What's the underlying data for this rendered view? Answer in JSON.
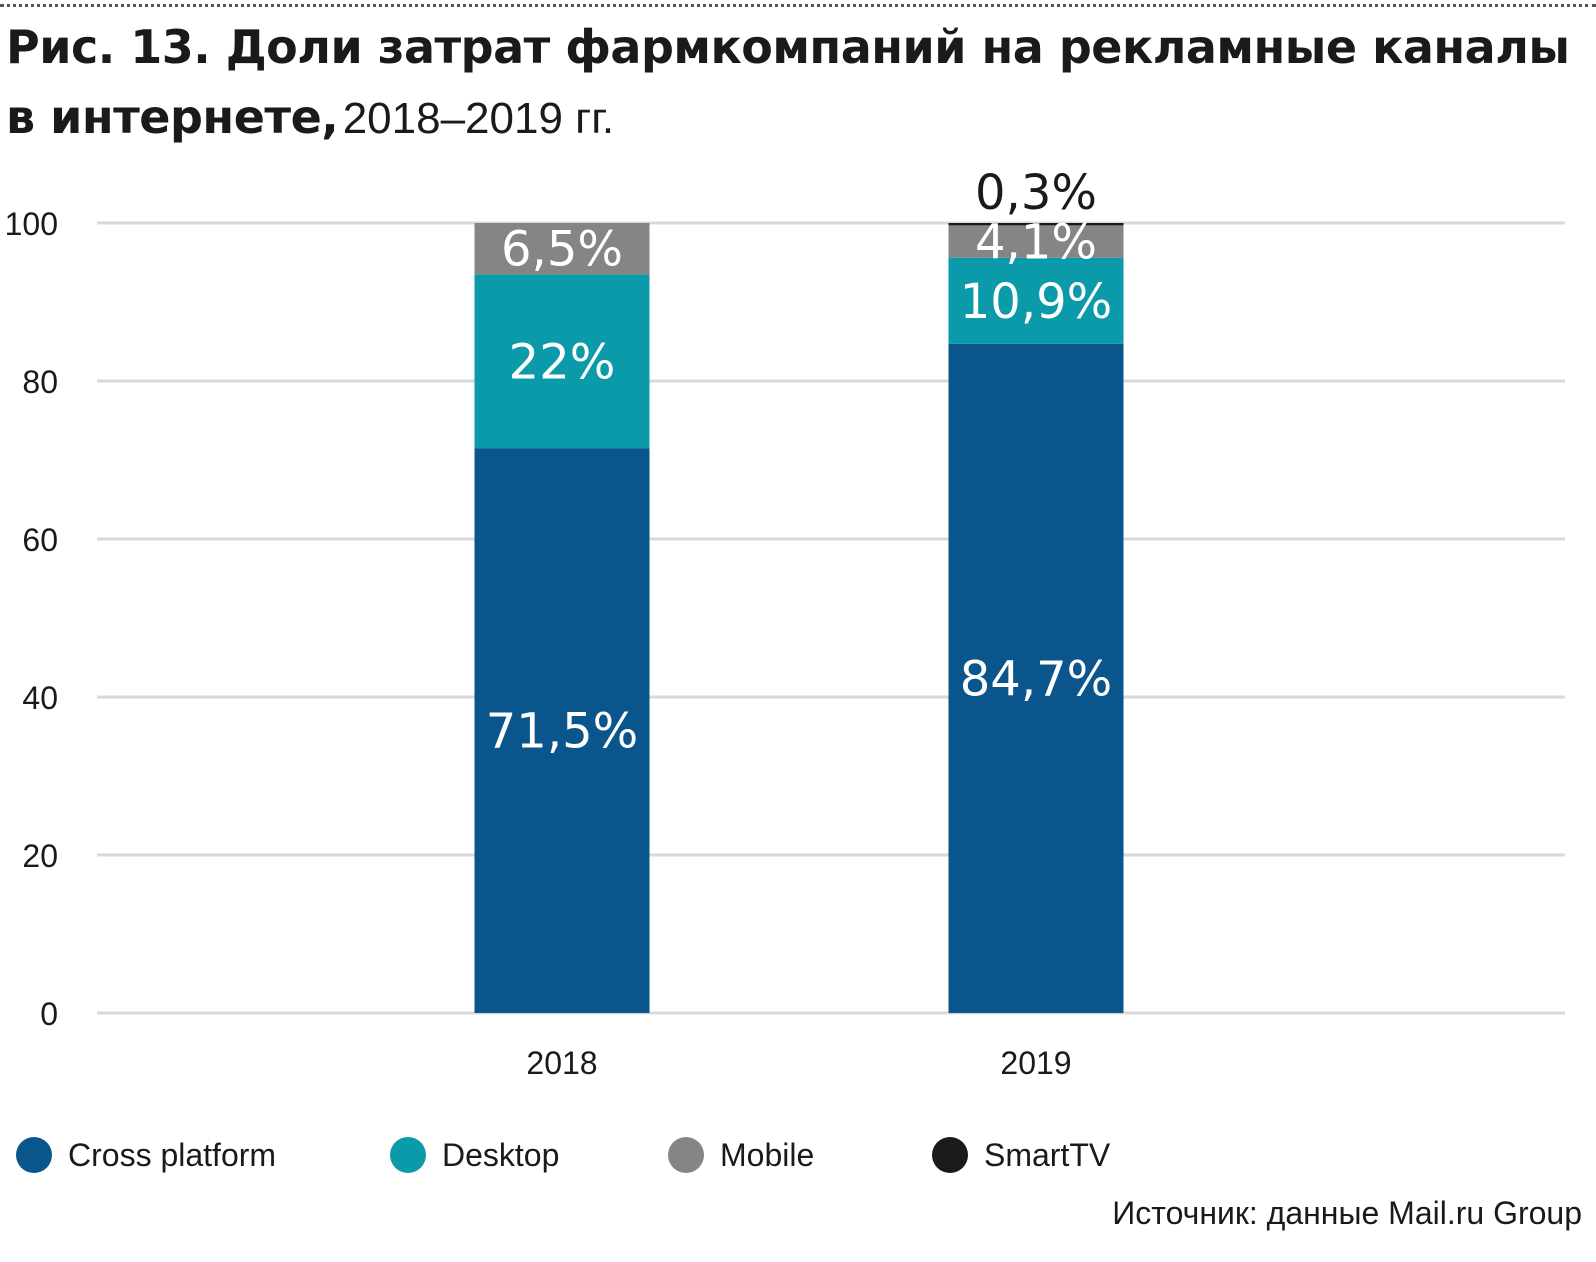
{
  "header": {
    "title_bold_line1": "Рис. 13. Доли затрат фармкомпаний на рекламные каналы",
    "title_bold_line2": "в интернете,",
    "title_light": "2018–2019 гг."
  },
  "source": "Источник: данные Mail.ru Group",
  "chart_data": {
    "type": "bar",
    "stacked": true,
    "title": "Рис. 13. Доли затрат фармкомпаний на рекламные каналы в интернете, 2018–2019 гг.",
    "categories": [
      "2018",
      "2019"
    ],
    "ylim": [
      0,
      100
    ],
    "yticks": [
      0,
      20,
      40,
      60,
      80,
      100
    ],
    "grid": true,
    "legend_position": "bottom",
    "series": [
      {
        "name": "Cross platform",
        "color": "#0a568c",
        "values": [
          71.5,
          84.7
        ],
        "labels": [
          "71,5%",
          "84,7%"
        ]
      },
      {
        "name": "Desktop",
        "color": "#0b9aa9",
        "values": [
          22,
          10.9
        ],
        "labels": [
          "22%",
          "10,9%"
        ]
      },
      {
        "name": "Mobile",
        "color": "#858585",
        "values": [
          6.5,
          4.1
        ],
        "labels": [
          "6,5%",
          "4,1%"
        ]
      },
      {
        "name": "SmartTV",
        "color": "#1a1a1a",
        "values": [
          0,
          0.3
        ],
        "labels": [
          "",
          "0,3%"
        ]
      }
    ]
  }
}
